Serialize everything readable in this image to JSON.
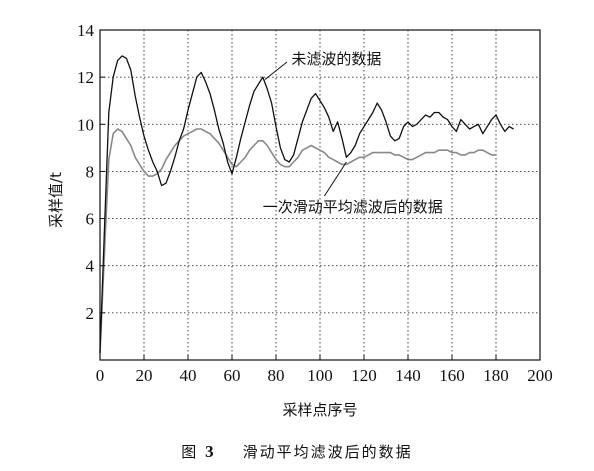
{
  "chart_data": {
    "type": "line",
    "title": "",
    "xlabel": "采样点序号",
    "ylabel": "采样值/t",
    "xlim": [
      0,
      200
    ],
    "ylim": [
      0,
      14
    ],
    "x_ticks": [
      "0",
      "20",
      "40",
      "60",
      "80",
      "100",
      "120",
      "140",
      "160",
      "180",
      "200"
    ],
    "y_ticks": [
      "2",
      "4",
      "6",
      "8",
      "10",
      "12",
      "14"
    ],
    "grid": true,
    "grid_style": "dotted",
    "series": [
      {
        "name": "未滤波的数据",
        "color": "#111111",
        "x": [
          0,
          2,
          4,
          6,
          8,
          10,
          12,
          14,
          16,
          18,
          20,
          22,
          24,
          26,
          28,
          30,
          32,
          34,
          36,
          38,
          40,
          42,
          44,
          46,
          48,
          50,
          52,
          54,
          56,
          58,
          60,
          62,
          64,
          66,
          68,
          70,
          72,
          74,
          76,
          78,
          80,
          82,
          84,
          86,
          88,
          90,
          92,
          94,
          96,
          98,
          100,
          102,
          104,
          106,
          108,
          110,
          112,
          114,
          116,
          118,
          120,
          122,
          124,
          126,
          128,
          130,
          132,
          134,
          136,
          138,
          140,
          142,
          144,
          146,
          148,
          150,
          152,
          154,
          156,
          158,
          160,
          162,
          164,
          166,
          168,
          170,
          172,
          174,
          176,
          178,
          180,
          182,
          184,
          186,
          188
        ],
        "y": [
          0.3,
          5.5,
          10.5,
          12.0,
          12.7,
          12.9,
          12.8,
          12.3,
          11.2,
          10.3,
          9.5,
          8.9,
          8.4,
          8.0,
          7.4,
          7.5,
          8.0,
          8.6,
          9.3,
          9.8,
          10.6,
          11.3,
          12.0,
          12.2,
          11.8,
          11.3,
          10.6,
          9.8,
          9.2,
          8.4,
          7.9,
          8.6,
          9.4,
          10.1,
          10.8,
          11.4,
          11.7,
          12.0,
          11.5,
          10.9,
          9.9,
          9.0,
          8.5,
          8.4,
          8.7,
          9.4,
          10.1,
          10.6,
          11.1,
          11.3,
          11.0,
          10.7,
          10.3,
          9.7,
          10.1,
          9.4,
          8.6,
          8.8,
          9.1,
          9.6,
          9.9,
          10.2,
          10.5,
          10.9,
          10.6,
          10.1,
          9.5,
          9.3,
          9.4,
          9.9,
          10.1,
          9.9,
          10.0,
          10.2,
          10.4,
          10.3,
          10.5,
          10.5,
          10.3,
          10.2,
          9.9,
          9.7,
          10.2,
          10.0,
          9.8,
          9.9,
          10.0,
          9.6,
          9.9,
          10.2,
          10.4,
          10.0,
          9.7,
          9.9,
          9.8
        ]
      },
      {
        "name": "一次滑动平均滤波后的数据",
        "color": "#888888",
        "x": [
          0,
          2,
          4,
          6,
          8,
          10,
          12,
          14,
          16,
          18,
          20,
          22,
          24,
          26,
          28,
          30,
          32,
          34,
          36,
          38,
          40,
          42,
          44,
          46,
          48,
          50,
          52,
          54,
          56,
          58,
          60,
          62,
          64,
          66,
          68,
          70,
          72,
          74,
          76,
          78,
          80,
          82,
          84,
          86,
          88,
          90,
          92,
          94,
          96,
          98,
          100,
          102,
          104,
          106,
          108,
          110,
          112,
          114,
          116,
          118,
          120,
          122,
          124,
          126,
          128,
          130,
          132,
          134,
          136,
          138,
          140,
          142,
          144,
          146,
          148,
          150,
          152,
          154,
          156,
          158,
          160,
          162,
          164,
          166,
          168,
          170,
          172,
          174,
          176,
          178,
          180
        ],
        "y": [
          0.3,
          4.5,
          8.5,
          9.6,
          9.8,
          9.7,
          9.4,
          9.1,
          8.6,
          8.3,
          8.0,
          7.8,
          7.8,
          7.9,
          8.1,
          8.5,
          8.8,
          9.1,
          9.3,
          9.5,
          9.6,
          9.7,
          9.8,
          9.8,
          9.7,
          9.6,
          9.4,
          9.2,
          8.9,
          8.6,
          8.3,
          8.2,
          8.4,
          8.6,
          8.9,
          9.1,
          9.3,
          9.3,
          9.1,
          8.8,
          8.5,
          8.3,
          8.2,
          8.2,
          8.4,
          8.6,
          8.9,
          9.0,
          9.1,
          9.0,
          8.9,
          8.8,
          8.6,
          8.5,
          8.4,
          8.3,
          8.3,
          8.4,
          8.5,
          8.6,
          8.6,
          8.7,
          8.8,
          8.8,
          8.8,
          8.8,
          8.8,
          8.7,
          8.7,
          8.6,
          8.5,
          8.5,
          8.6,
          8.7,
          8.8,
          8.8,
          8.8,
          8.9,
          8.9,
          8.9,
          8.8,
          8.8,
          8.7,
          8.7,
          8.8,
          8.8,
          8.9,
          8.9,
          8.8,
          8.7,
          8.7
        ]
      }
    ],
    "annotations": [
      {
        "text": "未滤波的数据",
        "series": 0
      },
      {
        "text": "一次滑动平均滤波后的数据",
        "series": 1
      }
    ]
  },
  "caption": {
    "figure_label": "图",
    "figure_number": "3",
    "text": "滑动平均滤波后的数据"
  }
}
